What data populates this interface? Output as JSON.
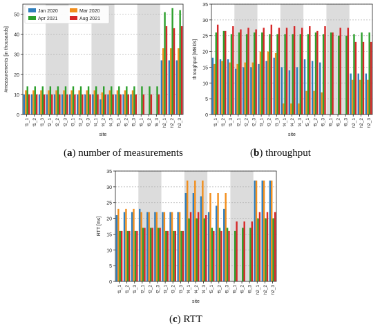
{
  "colors": {
    "jan2020": "#2f7ebc",
    "mar2020": "#f28e1c",
    "apr2021": "#2ca02c",
    "aug2021": "#d62728",
    "shade": "#dcdcdc",
    "grid": "#b0b0b0"
  },
  "captions": [
    {
      "letter": "a",
      "text": "number of measurements"
    },
    {
      "letter": "b",
      "text": "throughput"
    },
    {
      "letter": "c",
      "text": "RTT"
    }
  ],
  "chart_data": [
    {
      "id": "a",
      "type": "bar",
      "xlabel": "site",
      "ylabel": "#measurements [in thousands]",
      "ylim": [
        0,
        55
      ],
      "yticks": [
        0,
        10,
        20,
        30,
        40,
        50
      ],
      "legend": "top-left",
      "grid": true,
      "categories": [
        "f1_1",
        "f1_2",
        "f1_3",
        "f2_1",
        "f2_2",
        "f2_3",
        "f3_1",
        "f3_2",
        "f3_3",
        "f4_1",
        "f4_2",
        "f4_3",
        "f5_1",
        "f5_2",
        "f5_3",
        "f6_1",
        "f6_2",
        "f6_3",
        "h2_1",
        "h2_2",
        "h2_3"
      ],
      "shaded_groups": [
        [
          "f2_1",
          "f2_3"
        ],
        [
          "f4_1",
          "f4_3"
        ],
        [
          "f6_1",
          "f6_3"
        ]
      ],
      "series": [
        {
          "name": "Jan 2020",
          "values": [
            10,
            10,
            10,
            10,
            10,
            10,
            10,
            10,
            10,
            10,
            7.5,
            10,
            10,
            10,
            10,
            0,
            0,
            0,
            27,
            27,
            27
          ]
        },
        {
          "name": "Mar 2020",
          "values": [
            12,
            12,
            12,
            12,
            12,
            12,
            12,
            12,
            12,
            12,
            11,
            12,
            12,
            12,
            12,
            0,
            0,
            0,
            33,
            33,
            33
          ]
        },
        {
          "name": "Apr 2021",
          "values": [
            14,
            14,
            14,
            14,
            14,
            14,
            14,
            14,
            14,
            14,
            14,
            14,
            14,
            14,
            14,
            14,
            14,
            14,
            51,
            53,
            52
          ]
        },
        {
          "name": "Aug 2021",
          "values": [
            10,
            10,
            10,
            10,
            10,
            10,
            10,
            10,
            10,
            10,
            10,
            10,
            10,
            10,
            10,
            10,
            10,
            10,
            44,
            43,
            44
          ]
        }
      ]
    },
    {
      "id": "b",
      "type": "bar",
      "xlabel": "site",
      "ylabel": "throughput [MBit/s]",
      "ylim": [
        0,
        35
      ],
      "yticks": [
        0,
        5,
        10,
        15,
        20,
        25,
        30,
        35
      ],
      "grid": true,
      "categories": [
        "f1_1",
        "f1_2",
        "f1_3",
        "f2_1",
        "f2_2",
        "f2_3",
        "f3_1",
        "f3_2",
        "f3_3",
        "f4_1",
        "f4_2",
        "f4_3",
        "f5_1",
        "f5_2",
        "f5_3",
        "f6_1",
        "f6_2",
        "f6_3",
        "h2_1",
        "h2_2",
        "h2_3"
      ],
      "shaded_groups": [
        [
          "f2_1",
          "f2_3"
        ],
        [
          "f4_1",
          "f4_3"
        ],
        [
          "f6_1",
          "f6_3"
        ]
      ],
      "series": [
        {
          "name": "Jan 2020",
          "values": [
            18,
            17.5,
            17.5,
            14.5,
            15,
            15,
            16,
            17,
            18,
            15,
            14,
            15,
            17.5,
            17,
            16.5,
            0,
            0,
            0,
            13,
            13,
            13
          ]
        },
        {
          "name": "Mar 2020",
          "values": [
            16,
            17,
            16.5,
            16,
            16.5,
            16.5,
            20,
            20,
            19.5,
            3.5,
            3.5,
            3.5,
            7.5,
            7.5,
            7,
            0,
            0,
            0,
            11,
            11,
            11
          ]
        },
        {
          "name": "Apr 2021",
          "values": [
            26,
            26.5,
            25.5,
            26,
            25.5,
            26,
            26,
            25.5,
            25.5,
            25.5,
            25.5,
            25.5,
            25.5,
            26,
            25.5,
            26,
            25,
            25,
            25.5,
            26,
            26
          ]
        },
        {
          "name": "Aug 2021",
          "values": [
            28.5,
            26.5,
            28,
            27,
            27.5,
            27,
            27.5,
            28.5,
            27.5,
            27.5,
            28,
            27.5,
            28,
            26.5,
            28,
            26,
            27.5,
            27.5,
            23,
            23,
            23
          ]
        }
      ]
    },
    {
      "id": "c",
      "type": "bar",
      "xlabel": "site",
      "ylabel": "RTT [ms]",
      "ylim": [
        0,
        35
      ],
      "yticks": [
        0,
        5,
        10,
        15,
        20,
        25,
        30,
        35
      ],
      "grid": true,
      "categories": [
        "f1_1",
        "f1_2",
        "f1_3",
        "f2_1",
        "f2_2",
        "f2_3",
        "f3_1",
        "f3_2",
        "f3_3",
        "f4_1",
        "f4_2",
        "f4_3",
        "f5_1",
        "f5_2",
        "f5_3",
        "f6_1",
        "f6_2",
        "f6_3",
        "h2_1",
        "h2_2",
        "h2_3"
      ],
      "shaded_groups": [
        [
          "f2_1",
          "f2_3"
        ],
        [
          "f4_1",
          "f4_3"
        ],
        [
          "f6_1",
          "f6_3"
        ]
      ],
      "series": [
        {
          "name": "Jan 2020",
          "values": [
            21,
            22,
            22,
            23,
            22,
            22,
            22,
            22,
            22,
            28,
            28,
            27,
            22,
            24,
            23,
            0,
            0,
            0,
            32,
            32,
            32
          ]
        },
        {
          "name": "Mar 2020",
          "values": [
            23,
            23,
            23,
            22,
            22,
            22,
            22,
            22,
            22,
            32,
            32,
            32,
            28,
            28,
            28,
            0,
            0,
            0,
            32,
            32,
            32
          ]
        },
        {
          "name": "Apr 2021",
          "values": [
            16,
            16,
            16,
            17,
            17,
            17,
            16,
            16,
            16,
            20,
            20,
            20,
            17,
            17,
            17,
            16,
            17,
            17,
            20,
            20,
            20
          ]
        },
        {
          "name": "Aug 2021",
          "values": [
            16,
            16,
            16,
            17,
            17,
            17,
            16,
            16,
            16,
            22,
            22,
            21,
            16,
            16,
            16,
            19,
            19,
            19,
            22,
            22,
            22
          ]
        }
      ]
    }
  ]
}
